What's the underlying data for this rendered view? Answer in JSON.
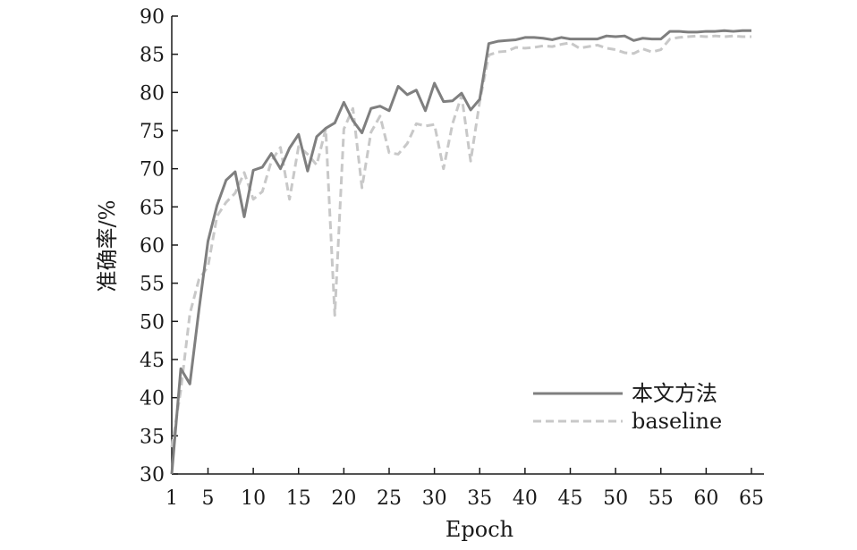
{
  "chart_data": {
    "type": "line",
    "xlabel": "Epoch",
    "ylabel": "准确率/%",
    "xlim": [
      1,
      65
    ],
    "ylim": [
      30,
      90
    ],
    "x_ticks": [
      "1",
      "5",
      "10",
      "15",
      "20",
      "25",
      "30",
      "35",
      "40",
      "45",
      "50",
      "55",
      "60",
      "65"
    ],
    "y_ticks": [
      "30",
      "35",
      "40",
      "45",
      "50",
      "55",
      "60",
      "65",
      "70",
      "75",
      "80",
      "85",
      "90"
    ],
    "legend_position": "bottom-right",
    "x": [
      1,
      2,
      3,
      4,
      5,
      6,
      7,
      8,
      9,
      10,
      11,
      12,
      13,
      14,
      15,
      16,
      17,
      18,
      19,
      20,
      21,
      22,
      23,
      24,
      25,
      26,
      27,
      28,
      29,
      30,
      31,
      32,
      33,
      34,
      35,
      36,
      37,
      38,
      39,
      40,
      41,
      42,
      43,
      44,
      45,
      46,
      47,
      48,
      49,
      50,
      51,
      52,
      53,
      54,
      55,
      56,
      57,
      58,
      59,
      60,
      61,
      62,
      63,
      64,
      65
    ],
    "series": [
      {
        "name": "本文方法",
        "color": "#7f7f7f",
        "style": "solid",
        "values": [
          30,
          43.8,
          41.8,
          51.5,
          60.5,
          65.2,
          68.5,
          69.6,
          63.7,
          69.8,
          70.2,
          72,
          70,
          72.7,
          74.5,
          69.7,
          74.2,
          75.3,
          76,
          78.7,
          76.3,
          74.7,
          77.9,
          78.2,
          77.6,
          80.8,
          79.7,
          80.3,
          77.6,
          81.2,
          78.8,
          78.9,
          79.9,
          77.7,
          79.1,
          86.4,
          86.7,
          86.8,
          86.9,
          87.2,
          87.2,
          87.1,
          86.9,
          87.2,
          87,
          87,
          87,
          87,
          87.4,
          87.3,
          87.4,
          86.8,
          87.1,
          87,
          87,
          88,
          88,
          87.9,
          87.9,
          88,
          88,
          88.1,
          88,
          88.1,
          88.1
        ]
      },
      {
        "name": "baseline",
        "color": "#c8c8c8",
        "style": "dashed",
        "values": [
          33.5,
          41,
          51,
          55.5,
          57.2,
          63.8,
          65.6,
          66.8,
          69.5,
          66,
          67,
          71,
          72.8,
          66,
          72.9,
          71.9,
          70.5,
          75.2,
          50.8,
          75.2,
          77.9,
          67.5,
          74.8,
          76.9,
          72.1,
          71.9,
          73.3,
          75.9,
          75.6,
          75.8,
          70,
          75.9,
          79.6,
          71,
          78.8,
          84.9,
          85.3,
          85.4,
          85.9,
          85.8,
          85.9,
          86.1,
          86,
          86.3,
          86.5,
          85.8,
          86,
          86.2,
          85.8,
          85.6,
          85.2,
          85.1,
          85.7,
          85.3,
          85.6,
          87,
          87.2,
          87.3,
          87.4,
          87.3,
          87.4,
          87.3,
          87.4,
          87.3,
          87.3
        ]
      }
    ]
  }
}
